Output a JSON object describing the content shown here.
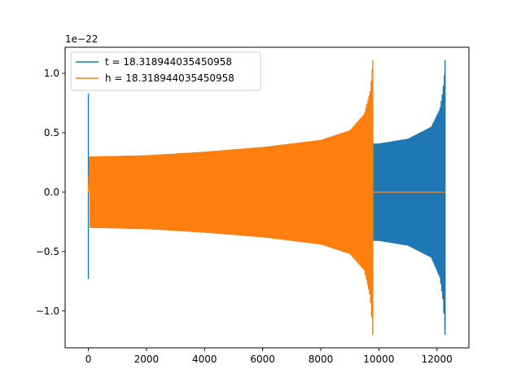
{
  "chart_data": {
    "type": "line",
    "title": "",
    "xlabel": "",
    "ylabel": "",
    "offset_text": "1e−22",
    "xlim": [
      -800,
      13100
    ],
    "ylim": [
      -1.31,
      1.22
    ],
    "x_ticks": [
      0,
      2000,
      4000,
      6000,
      8000,
      10000,
      12000
    ],
    "x_tick_labels": [
      "0",
      "2000",
      "4000",
      "6000",
      "8000",
      "10000",
      "12000"
    ],
    "y_ticks": [
      -1.0,
      -0.5,
      0.0,
      0.5,
      1.0
    ],
    "y_tick_labels": [
      "−1.0",
      "−0.5",
      "0.0",
      "0.5",
      "1.0"
    ],
    "grid": false,
    "legend_position": "top-left",
    "series": [
      {
        "name": "t = 18.318944035450958",
        "color": "#1f77b4",
        "description": "chirp waveform",
        "x_start": 0,
        "x_end": 12280,
        "start_spike": {
          "max": 0.83,
          "min": -0.73
        },
        "envelope_x": [
          50,
          2000,
          4000,
          6000,
          8000,
          10000,
          11000,
          11800,
          12100,
          12200,
          12260,
          12280
        ],
        "envelope_upper": [
          0.3,
          0.31,
          0.34,
          0.38,
          0.41,
          0.41,
          0.45,
          0.55,
          0.7,
          0.85,
          1.0,
          1.11
        ],
        "envelope_lower": [
          -0.3,
          -0.31,
          -0.34,
          -0.38,
          -0.41,
          -0.41,
          -0.45,
          -0.55,
          -0.72,
          -0.9,
          -1.1,
          -1.2
        ]
      },
      {
        "name": "h = 18.318944035450958",
        "color": "#ff7f0e",
        "description": "chirp waveform followed by flat zero line",
        "x_start": 0,
        "x_merger": 9790,
        "x_end": 12280,
        "envelope_x": [
          50,
          2000,
          4000,
          6000,
          8000,
          9000,
          9500,
          9700,
          9760,
          9790
        ],
        "envelope_upper": [
          0.3,
          0.31,
          0.34,
          0.38,
          0.44,
          0.52,
          0.66,
          0.85,
          1.0,
          1.11
        ],
        "envelope_lower": [
          -0.3,
          -0.31,
          -0.34,
          -0.38,
          -0.44,
          -0.52,
          -0.66,
          -0.88,
          -1.08,
          -1.2
        ],
        "post_merger_value": 0.0
      }
    ]
  }
}
